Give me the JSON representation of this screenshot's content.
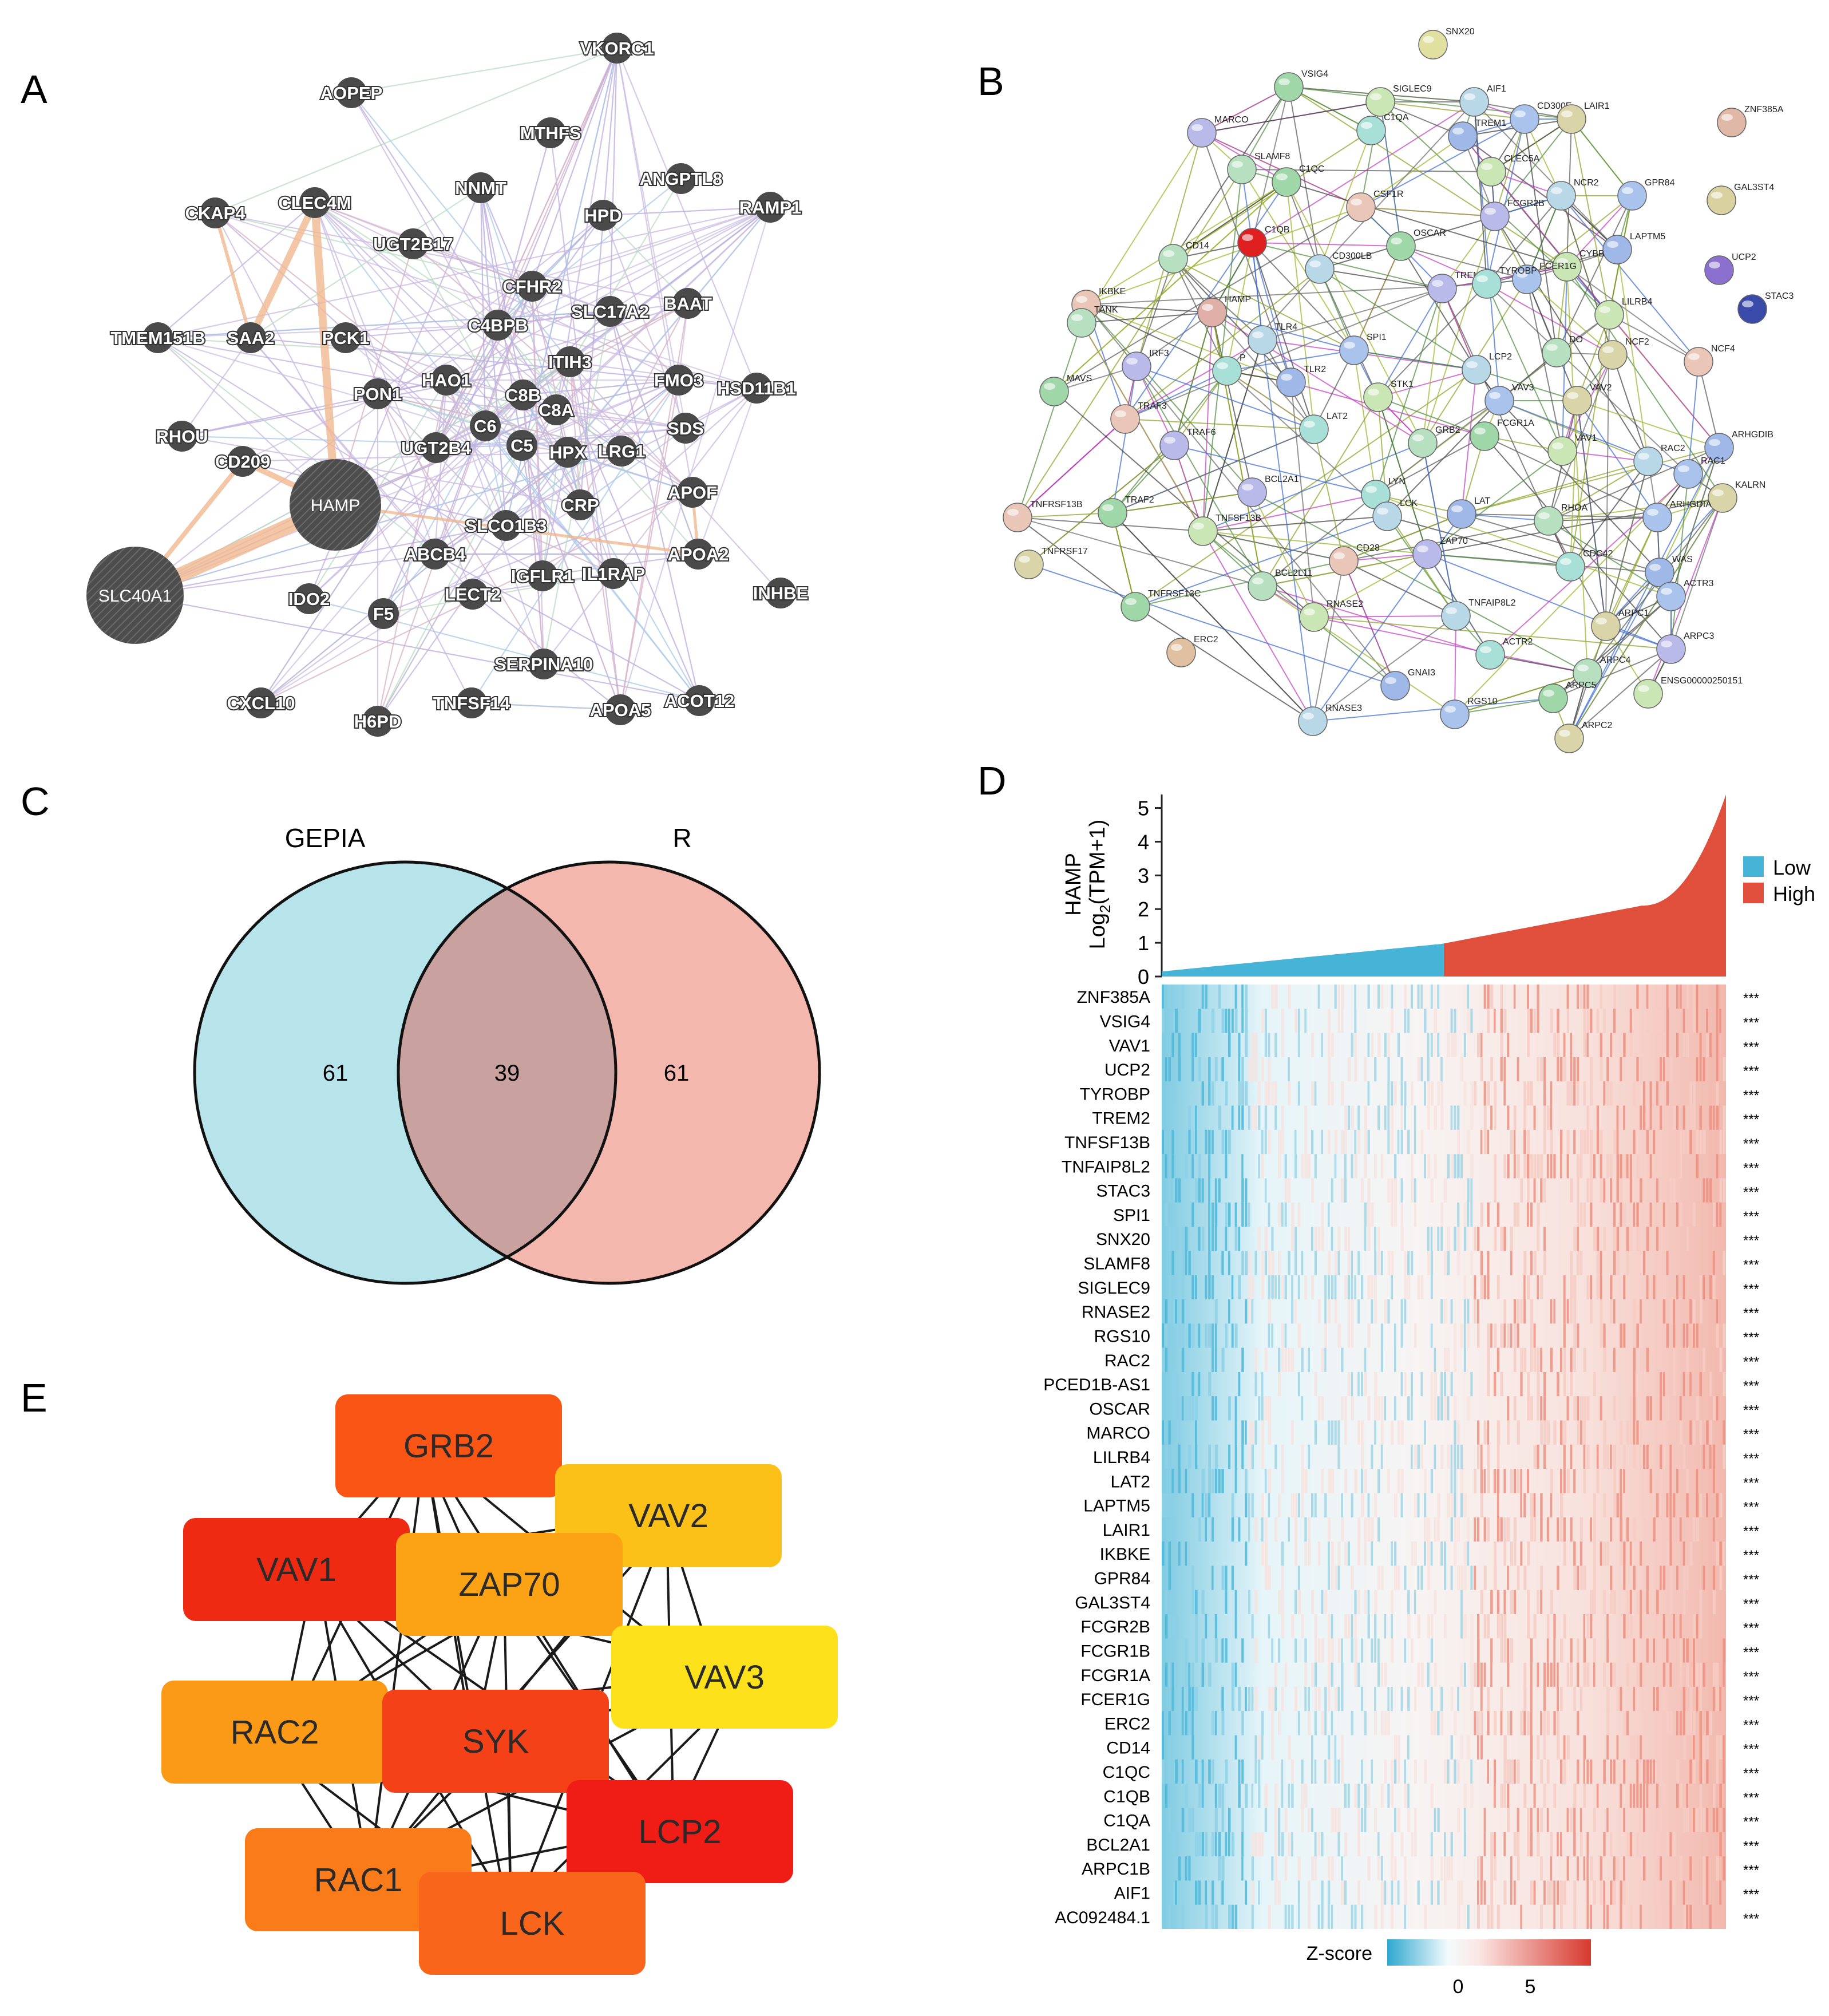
{
  "panels": {
    "a": "A",
    "b": "B",
    "c": "C",
    "d": "D",
    "e": "E"
  },
  "networkA": {
    "nodes": [
      "VKORC1",
      "AOPEP",
      "MTHFS",
      "ANGPTL8",
      "RAMP1",
      "CKAP4",
      "CLEC4M",
      "NNMT",
      "HPD",
      "UGT2B17",
      "CFHR2",
      "BAAT",
      "TMEM151B",
      "SAA2",
      "PCK1",
      "C4BPB",
      "SLC17A2",
      "ITIH3",
      "HAO1",
      "PON1",
      "C8B",
      "C8A",
      "FMO3",
      "HSD11B1",
      "RHOU",
      "C6",
      "C5",
      "HPX",
      "LRG1",
      "SDS",
      "CD209",
      "UGT2B4",
      "HAMP",
      "CRP",
      "APOF",
      "SLCO1B3",
      "ABCB4",
      "APOA2",
      "SLC40A1",
      "IGFLR1",
      "IL1RAP",
      "INHBE",
      "IDO2",
      "LECT2",
      "F5",
      "SERPINA10",
      "CXCL10",
      "TNFSF14",
      "H6PD",
      "APOA5",
      "ACOT12"
    ]
  },
  "networkB": {
    "nodes": [
      "SNX20",
      "VSIG4",
      "SIGLEC9",
      "AIF1",
      "CD300E",
      "LAIR1",
      "ZNF385A",
      "MARCO",
      "C1QA",
      "TREM1",
      "SLAMF8",
      "C1QC",
      "CLEC5A",
      "NCR2",
      "GPR84",
      "GAL3ST4",
      "CSF1R",
      "FCGR2B",
      "C1QB",
      "LAPTM5",
      "CD14",
      "OSCAR",
      "CYBB",
      "CD300LB",
      "FCER1G",
      "UCP2",
      "IKBKE",
      "TREM2",
      "TYROBP",
      "STAC3",
      "TANK",
      "HAMP",
      "LILRB4",
      "TLR4",
      "SPI1",
      "NCF2",
      "NCF4",
      "IRF3",
      "P",
      "TLR2",
      "DO",
      "MAVS",
      "STK1",
      "LCP2",
      "VAV3",
      "VAV2",
      "TRAF3",
      "TRAF6",
      "LAT2",
      "ARHGDIB",
      "GRB2",
      "FCGR1A",
      "VAV1",
      "RAC2",
      "RAC1",
      "KALRN",
      "TNFRSF13B",
      "BCL2A1",
      "LYN",
      "LAT",
      "RHOA",
      "TRAF2",
      "TNFSF13B",
      "LCK",
      "ARHGDIA",
      "TNFRSF17",
      "CD28",
      "ZAP70",
      "CDC42",
      "WAS",
      "BCL2L11",
      "TNFRSF13C",
      "RNASE2",
      "TNFAIP8L2",
      "ACTR3",
      "ARPC1",
      "ERC2",
      "ARPC3",
      "ACTR2",
      "GNAI3",
      "ARPC4",
      "ARPC5",
      "ENSG00000250151",
      "RNASE3",
      "RGS10",
      "ARPC2"
    ]
  },
  "venn": {
    "left_label": "GEPIA",
    "right_label": "R",
    "left_only": "61",
    "both": "39",
    "right_only": "61",
    "left_color": "#b7e3ea",
    "right_color": "#f3b7ae",
    "overlap_color": "#c9a19e"
  },
  "chart_data": {
    "type": "heatmap",
    "top_axis_label_gene": "HAMP",
    "top_axis_label": "Log",
    "top_axis_label_sub": "2",
    "top_axis_label_tail": "(TPM+1)",
    "ylim": [
      0,
      5.4
    ],
    "yticks": [
      "0",
      "1",
      "2",
      "3",
      "4",
      "5"
    ],
    "legend": [
      {
        "name": "Low",
        "color": "#45b4d6"
      },
      {
        "name": "High",
        "color": "#e04f3c"
      }
    ],
    "genes": [
      "ZNF385A",
      "VSIG4",
      "VAV1",
      "UCP2",
      "TYROBP",
      "TREM2",
      "TNFSF13B",
      "TNFAIP8L2",
      "STAC3",
      "SPI1",
      "SNX20",
      "SLAMF8",
      "SIGLEC9",
      "RNASE2",
      "RGS10",
      "RAC2",
      "PCED1B-AS1",
      "OSCAR",
      "MARCO",
      "LILRB4",
      "LAT2",
      "LAPTM5",
      "LAIR1",
      "IKBKE",
      "GPR84",
      "GAL3ST4",
      "FCGR2B",
      "FCGR1B",
      "FCGR1A",
      "FCER1G",
      "ERC2",
      "CD14",
      "C1QC",
      "C1QB",
      "C1QA",
      "BCL2A1",
      "ARPC1B",
      "AIF1",
      "AC092484.1"
    ],
    "significance": "***",
    "zscore_label": "Z-score",
    "zscore_ticks": [
      "0",
      "5"
    ]
  },
  "hubGenes": [
    {
      "name": "GRB2",
      "color": "#f95514"
    },
    {
      "name": "VAV2",
      "color": "#fcc118"
    },
    {
      "name": "VAV1",
      "color": "#ee2a12"
    },
    {
      "name": "ZAP70",
      "color": "#fba314"
    },
    {
      "name": "VAV3",
      "color": "#fde11a"
    },
    {
      "name": "RAC2",
      "color": "#fb9a17"
    },
    {
      "name": "SYK",
      "color": "#f44118"
    },
    {
      "name": "LCP2",
      "color": "#f01c16"
    },
    {
      "name": "RAC1",
      "color": "#fa7b1a"
    },
    {
      "name": "LCK",
      "color": "#f9651a"
    }
  ]
}
